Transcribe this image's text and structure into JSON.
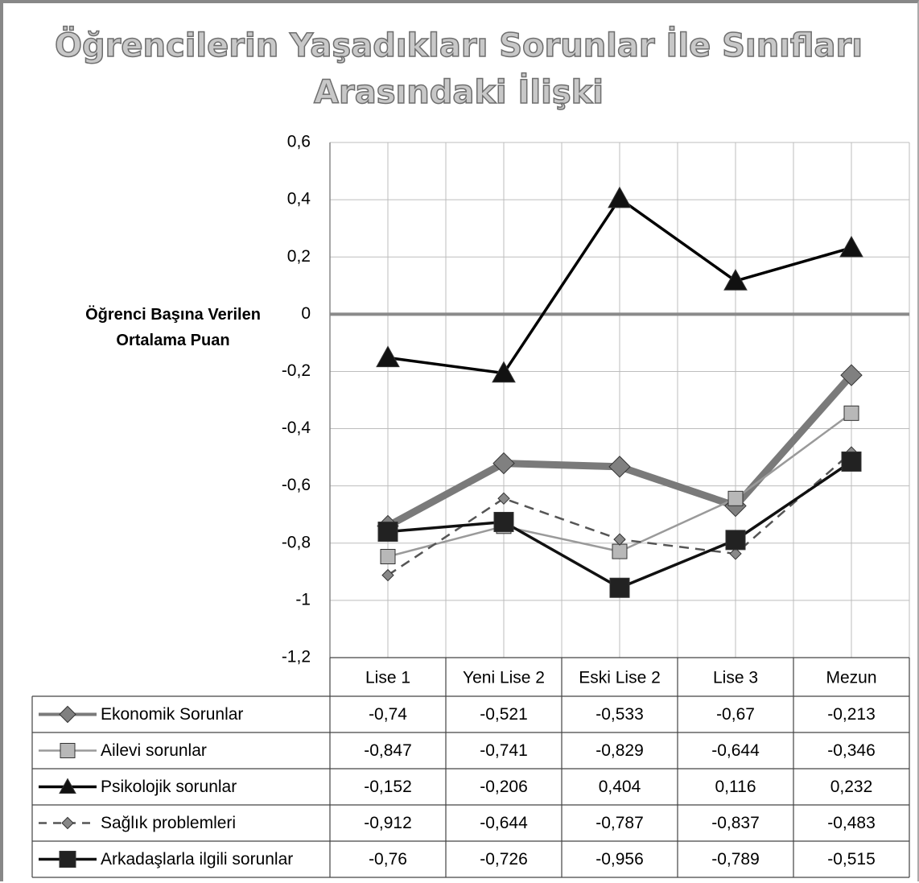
{
  "chart_data": {
    "type": "line",
    "title": "Öğrencilerin Yaşadıkları Sorunlar İle Sınıfları Arasındaki İlişki",
    "y_label": "Öğrenci Başına Verilen Ortalama Puan",
    "categories": [
      "Lise 1",
      "Yeni Lise 2",
      "Eski Lise 2",
      "Lise 3",
      "Mezun"
    ],
    "ylim": [
      -1.2,
      0.6
    ],
    "yticks": [
      {
        "value": 0.6,
        "label": "0,6"
      },
      {
        "value": 0.4,
        "label": "0,4"
      },
      {
        "value": 0.2,
        "label": "0,2"
      },
      0,
      {
        "value": -0.2,
        "label": "-0,2"
      },
      {
        "value": -0.4,
        "label": "-0,4"
      },
      {
        "value": -0.6,
        "label": "-0,6"
      },
      {
        "value": -0.8,
        "label": "-0,8"
      },
      -1,
      {
        "value": -1.2,
        "label": "-1,2"
      }
    ],
    "grid": true,
    "data_table": true,
    "series": [
      {
        "name": "Ekonomik Sorunlar",
        "color": "#7a7a7a",
        "marker": "diamond",
        "dashed": false,
        "values": [
          -0.74,
          -0.521,
          -0.533,
          -0.67,
          -0.213
        ],
        "value_labels": [
          "-0,74",
          "-0,521",
          "-0,533",
          "-0,67",
          "-0,213"
        ]
      },
      {
        "name": "Ailevi sorunlar",
        "color": "#9a9a9a",
        "marker": "square",
        "dashed": false,
        "values": [
          -0.847,
          -0.741,
          -0.829,
          -0.644,
          -0.346
        ],
        "value_labels": [
          "-0,847",
          "-0,741",
          "-0,829",
          "-0,644",
          "-0,346"
        ]
      },
      {
        "name": "Psikolojik sorunlar",
        "color": "#000000",
        "marker": "triangle",
        "dashed": false,
        "values": [
          -0.152,
          -0.206,
          0.404,
          0.116,
          0.232
        ],
        "value_labels": [
          "-0,152",
          "-0,206",
          "0,404",
          "0,116",
          "0,232"
        ]
      },
      {
        "name": "Sağlık problemleri",
        "color": "#555555",
        "marker": "diamond",
        "dashed": true,
        "values": [
          -0.912,
          -0.644,
          -0.787,
          -0.837,
          -0.483
        ],
        "value_labels": [
          "-0,912",
          "-0,644",
          "-0,787",
          "-0,837",
          "-0,483"
        ]
      },
      {
        "name": "Arkadaşlarla ilgili sorunlar",
        "color": "#111111",
        "marker": "square",
        "dashed": false,
        "values": [
          -0.76,
          -0.726,
          -0.956,
          -0.789,
          -0.515
        ],
        "value_labels": [
          "-0,76",
          "-0,726",
          "-0,956",
          "-0,789",
          "-0,515"
        ]
      }
    ]
  }
}
